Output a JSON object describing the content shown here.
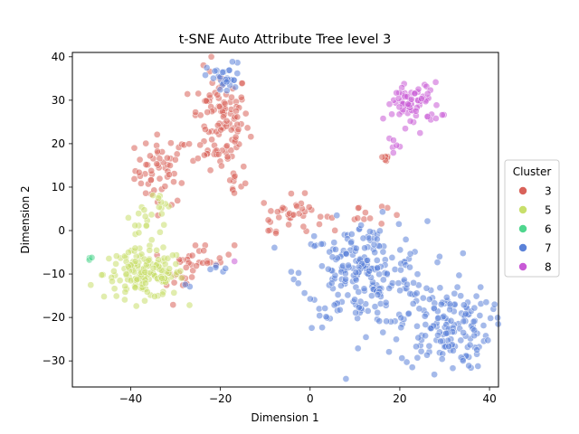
{
  "chart_data": {
    "type": "scatter",
    "title": "t-SNE Auto Attribute Tree level 3",
    "xlabel": "Dimension 1",
    "ylabel": "Dimension 2",
    "xlim": [
      -53,
      42
    ],
    "ylim": [
      -36,
      41
    ],
    "xticks": [
      -40,
      -20,
      0,
      20,
      40
    ],
    "yticks": [
      -30,
      -20,
      -10,
      0,
      10,
      20,
      30,
      40
    ],
    "grid": false,
    "legend": {
      "title": "Cluster",
      "placement": "center-right-outside"
    },
    "point_alpha": 0.55,
    "series": [
      {
        "name": "3",
        "color": "#d9625a",
        "regions": [
          {
            "cx": -33,
            "cy": 14,
            "sx": 3.0,
            "sy": 4.0,
            "n": 55
          },
          {
            "cx": -20,
            "cy": 25,
            "sx": 3.2,
            "sy": 6.0,
            "n": 110
          },
          {
            "cx": -17,
            "cy": 11,
            "sx": 1.5,
            "sy": 2.5,
            "n": 12
          },
          {
            "cx": -4,
            "cy": 4,
            "sx": 3.5,
            "sy": 2.0,
            "n": 35
          },
          {
            "cx": 11,
            "cy": 4,
            "sx": 3.0,
            "sy": 1.5,
            "n": 12
          },
          {
            "cx": 17,
            "cy": 16,
            "sx": 1.2,
            "sy": 1.2,
            "n": 6
          },
          {
            "cx": -24,
            "cy": -6,
            "sx": 3.5,
            "sy": 1.5,
            "n": 25
          },
          {
            "cx": -29,
            "cy": -12,
            "sx": 1.5,
            "sy": 1.5,
            "n": 12
          },
          {
            "cx": -9,
            "cy": 0,
            "sx": 0.3,
            "sy": 0.3,
            "n": 2
          }
        ]
      },
      {
        "name": "5",
        "color": "#c8df6b",
        "regions": [
          {
            "cx": -37,
            "cy": -10,
            "sx": 4.5,
            "sy": 2.8,
            "n": 150
          },
          {
            "cx": -36,
            "cy": 2,
            "sx": 3.0,
            "sy": 2.5,
            "n": 20
          },
          {
            "cx": -33,
            "cy": 7,
            "sx": 0.8,
            "sy": 0.8,
            "n": 4
          }
        ]
      },
      {
        "name": "6",
        "color": "#4fd68e",
        "regions": [
          {
            "cx": -48.3,
            "cy": -6,
            "sx": 0.4,
            "sy": 0.3,
            "n": 3
          }
        ]
      },
      {
        "name": "7",
        "color": "#5b82d8",
        "regions": [
          {
            "cx": 12,
            "cy": -10,
            "sx": 7.0,
            "sy": 6.0,
            "n": 230
          },
          {
            "cx": 30,
            "cy": -22,
            "sx": 5.0,
            "sy": 5.0,
            "n": 160
          },
          {
            "cx": -19,
            "cy": 35,
            "sx": 2.0,
            "sy": 1.8,
            "n": 30
          },
          {
            "cx": -20,
            "cy": -9,
            "sx": 1.0,
            "sy": 0.6,
            "n": 5
          },
          {
            "cx": -27,
            "cy": -13,
            "sx": 0.4,
            "sy": 0.4,
            "n": 2
          }
        ]
      },
      {
        "name": "8",
        "color": "#c85ad6",
        "regions": [
          {
            "cx": 23,
            "cy": 29,
            "sx": 3.0,
            "sy": 2.5,
            "n": 70
          },
          {
            "cx": 19,
            "cy": 20,
            "sx": 0.7,
            "sy": 1.0,
            "n": 6
          },
          {
            "cx": -17,
            "cy": -7,
            "sx": 0.3,
            "sy": 0.3,
            "n": 1
          }
        ]
      }
    ]
  }
}
